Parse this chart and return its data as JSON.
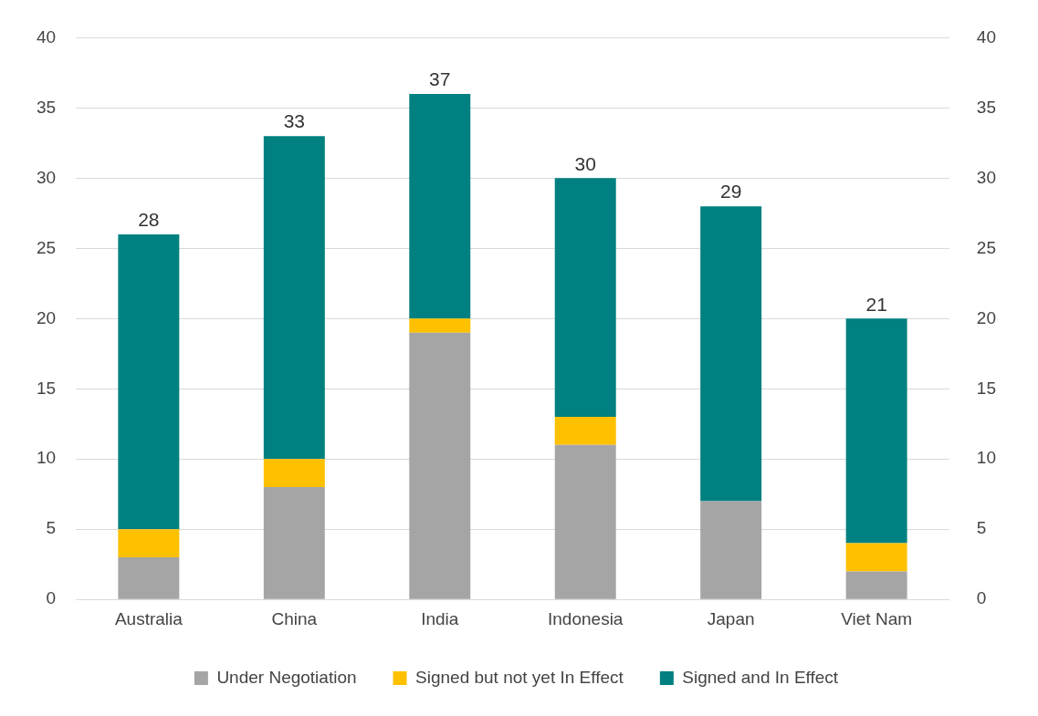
{
  "chart_data": {
    "type": "bar",
    "stacked": true,
    "categories": [
      "Australia",
      "China",
      "India",
      "Indonesia",
      "Japan",
      "Viet Nam"
    ],
    "series": [
      {
        "name": "Under Negotiation",
        "color": "#a5a5a5",
        "values": [
          3,
          8,
          19,
          11,
          7,
          2
        ]
      },
      {
        "name": "Signed but not yet In Effect",
        "color": "#ffc000",
        "values": [
          2,
          2,
          1,
          2,
          0,
          2
        ]
      },
      {
        "name": "Signed and In Effect",
        "color": "#008080",
        "values": [
          21,
          23,
          16,
          17,
          21,
          16
        ]
      }
    ],
    "totals": [
      "28",
      "33",
      "37",
      "30",
      "29",
      "21"
    ],
    "ylim": [
      0,
      40
    ],
    "yticks": [
      0,
      5,
      10,
      15,
      20,
      25,
      30,
      35,
      40
    ],
    "y2lim": [
      0,
      40
    ],
    "y2ticks": [
      0,
      5,
      10,
      15,
      20,
      25,
      30,
      35,
      40
    ],
    "grid": "y",
    "legend": "bottom"
  }
}
